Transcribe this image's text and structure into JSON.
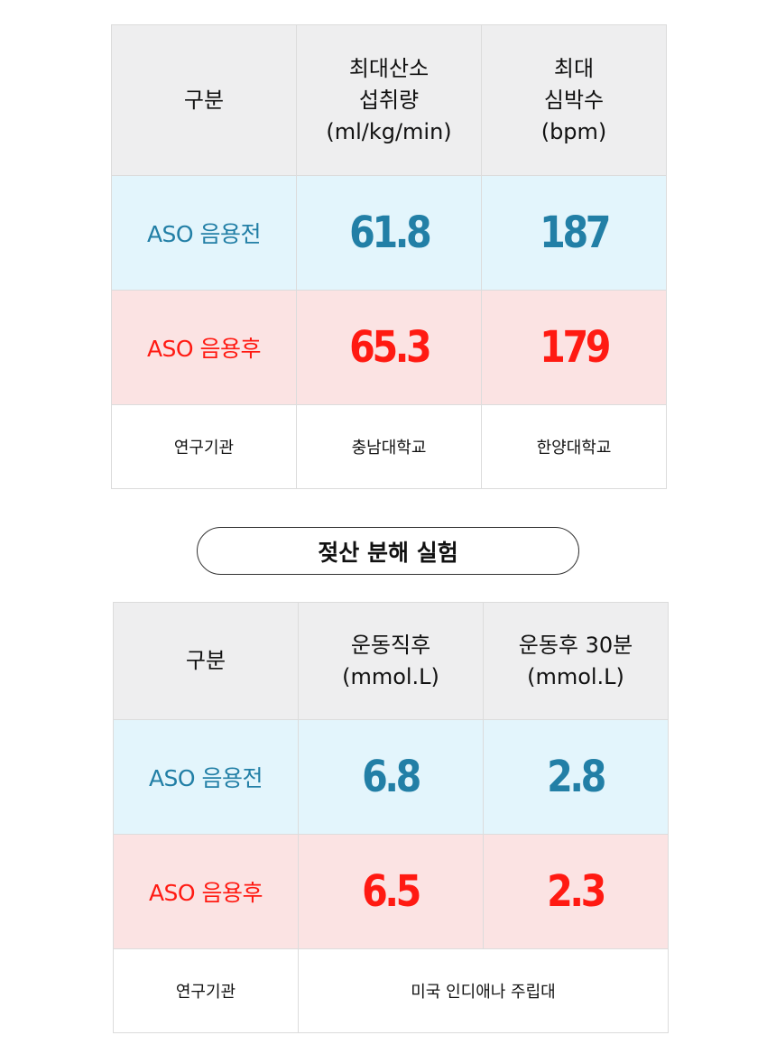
{
  "table1": {
    "headers": {
      "category": "구분",
      "col1": [
        "최대산소",
        "섭취량",
        "(ml/kg/min)"
      ],
      "col2": [
        "최대",
        "심박수",
        "(bpm)"
      ]
    },
    "rows": {
      "before": {
        "label": "ASO 음용전",
        "col1": "61.8",
        "col2": "187"
      },
      "after": {
        "label": "ASO 음용후",
        "col1": "65.3",
        "col2": "179"
      }
    },
    "institution": {
      "label": "연구기관",
      "col1": "충남대학교",
      "col2": "한양대학교"
    }
  },
  "section_title": "젖산 분해 실험",
  "table2": {
    "headers": {
      "category": "구분",
      "col1": [
        "운동직후",
        "(mmol.L)"
      ],
      "col2": [
        "운동후 30분",
        "(mmol.L)"
      ]
    },
    "rows": {
      "before": {
        "label": "ASO 음용전",
        "col1": "6.8",
        "col2": "2.8"
      },
      "after": {
        "label": "ASO 음용후",
        "col1": "6.5",
        "col2": "2.3"
      }
    },
    "institution": {
      "label": "연구기관",
      "value": "미국 인디애나 주립대"
    }
  },
  "colors": {
    "before_text": "#227fa6",
    "after_text": "#ff1a12",
    "before_bg": "#e3f5fc",
    "after_bg": "#fbe3e3",
    "header_bg": "#eeeeef"
  }
}
